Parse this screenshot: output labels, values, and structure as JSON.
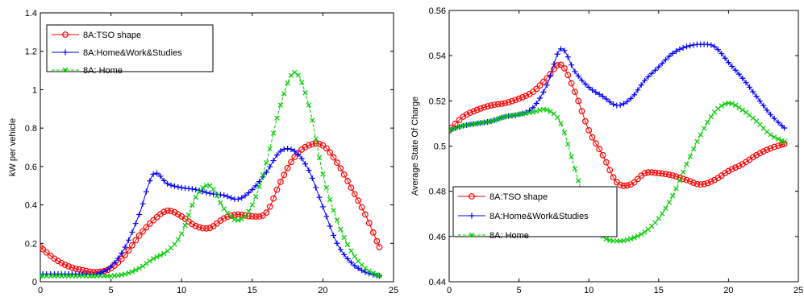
{
  "chart_data": [
    {
      "type": "line",
      "title": "",
      "xlabel": "",
      "ylabel": "kW per vehicle",
      "xlim": [
        0,
        25
      ],
      "ylim": [
        0,
        1.4
      ],
      "xticks": [
        "0",
        "5",
        "10",
        "15",
        "20",
        "25"
      ],
      "yticks": [
        "0",
        "0.2",
        "0.4",
        "0.6",
        "0.8",
        "1",
        "1.2",
        "1.4"
      ],
      "legend_position": "top-left",
      "series": [
        {
          "name": "8A:TSO shape",
          "color": "#ff0000",
          "marker": "circle",
          "x": [
            0,
            1,
            2,
            3,
            4,
            5,
            6,
            7,
            8,
            9,
            10,
            11,
            12,
            13,
            14,
            15,
            16,
            17,
            18,
            19,
            20,
            21,
            22,
            23,
            24
          ],
          "y": [
            0.18,
            0.12,
            0.08,
            0.06,
            0.05,
            0.07,
            0.14,
            0.24,
            0.32,
            0.37,
            0.34,
            0.29,
            0.28,
            0.33,
            0.35,
            0.34,
            0.36,
            0.52,
            0.65,
            0.71,
            0.71,
            0.62,
            0.49,
            0.35,
            0.18
          ]
        },
        {
          "name": "8A:Home&Work&Studies",
          "color": "#0000ff",
          "marker": "plus",
          "x": [
            0,
            1,
            2,
            3,
            4,
            5,
            6,
            7,
            8,
            9,
            10,
            11,
            12,
            13,
            14,
            15,
            16,
            17,
            18,
            19,
            20,
            21,
            22,
            23,
            24
          ],
          "y": [
            0.04,
            0.04,
            0.04,
            0.04,
            0.04,
            0.08,
            0.18,
            0.35,
            0.56,
            0.51,
            0.49,
            0.48,
            0.46,
            0.45,
            0.43,
            0.48,
            0.57,
            0.68,
            0.68,
            0.58,
            0.39,
            0.2,
            0.1,
            0.05,
            0.03
          ]
        },
        {
          "name": "8A: Home",
          "color": "#00cc00",
          "marker": "x",
          "x": [
            0,
            1,
            2,
            3,
            4,
            5,
            6,
            7,
            8,
            9,
            10,
            11,
            12,
            13,
            14,
            15,
            16,
            17,
            18,
            19,
            20,
            21,
            22,
            23,
            24
          ],
          "y": [
            0.03,
            0.03,
            0.03,
            0.03,
            0.03,
            0.03,
            0.04,
            0.07,
            0.12,
            0.16,
            0.25,
            0.44,
            0.5,
            0.38,
            0.32,
            0.4,
            0.62,
            0.92,
            1.09,
            0.92,
            0.56,
            0.32,
            0.16,
            0.07,
            0.03
          ]
        }
      ]
    },
    {
      "type": "line",
      "title": "",
      "xlabel": "",
      "ylabel": "Average State Of Charge",
      "xlim": [
        0,
        25
      ],
      "ylim": [
        0.44,
        0.56
      ],
      "xticks": [
        "0",
        "5",
        "10",
        "15",
        "20",
        "25"
      ],
      "yticks": [
        "0.44",
        "0.46",
        "0.48",
        "0.5",
        "0.52",
        "0.54",
        "0.56"
      ],
      "legend_position": "bottom-left",
      "series": [
        {
          "name": "8A:TSO shape",
          "color": "#ff0000",
          "marker": "circle",
          "x": [
            0,
            1,
            2,
            3,
            4,
            5,
            6,
            7,
            8,
            9,
            10,
            11,
            12,
            13,
            14,
            15,
            16,
            17,
            18,
            19,
            20,
            21,
            22,
            23,
            24
          ],
          "y": [
            0.507,
            0.513,
            0.516,
            0.518,
            0.519,
            0.521,
            0.524,
            0.53,
            0.536,
            0.524,
            0.507,
            0.496,
            0.484,
            0.483,
            0.488,
            0.488,
            0.487,
            0.485,
            0.483,
            0.485,
            0.489,
            0.492,
            0.496,
            0.499,
            0.501
          ]
        },
        {
          "name": "8A:Home&Work&Studies",
          "color": "#0000ff",
          "marker": "plus",
          "x": [
            0,
            1,
            2,
            3,
            4,
            5,
            6,
            7,
            8,
            9,
            10,
            11,
            12,
            13,
            14,
            15,
            16,
            17,
            18,
            19,
            20,
            21,
            22,
            23,
            24
          ],
          "y": [
            0.507,
            0.509,
            0.51,
            0.511,
            0.513,
            0.514,
            0.517,
            0.527,
            0.543,
            0.533,
            0.526,
            0.522,
            0.518,
            0.521,
            0.529,
            0.535,
            0.541,
            0.544,
            0.545,
            0.544,
            0.537,
            0.53,
            0.522,
            0.514,
            0.508
          ]
        },
        {
          "name": "8A: Home",
          "color": "#00cc00",
          "marker": "x",
          "x": [
            0,
            1,
            2,
            3,
            4,
            5,
            6,
            7,
            8,
            9,
            10,
            11,
            12,
            13,
            14,
            15,
            16,
            17,
            18,
            19,
            20,
            21,
            22,
            23,
            24
          ],
          "y": [
            0.507,
            0.509,
            0.51,
            0.511,
            0.513,
            0.514,
            0.515,
            0.516,
            0.51,
            0.49,
            0.47,
            0.46,
            0.458,
            0.459,
            0.462,
            0.468,
            0.478,
            0.492,
            0.505,
            0.515,
            0.519,
            0.516,
            0.511,
            0.505,
            0.502
          ]
        }
      ]
    }
  ]
}
